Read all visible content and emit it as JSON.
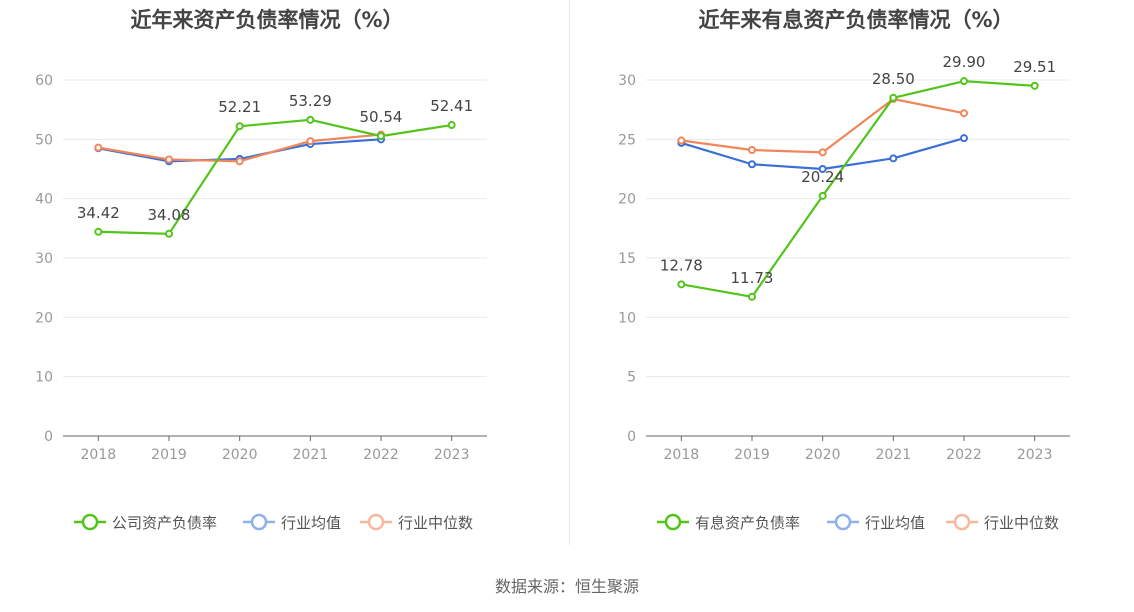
{
  "colors": {
    "company": "#52c41a",
    "industry_avg": "#3a6fd8",
    "industry_median": "#f0875a",
    "legend_avg": "#8fb0ee",
    "legend_median": "#f7b79c",
    "axis": "#666666",
    "grid": "#e6e9f0",
    "tick_text": "#999999",
    "title": "#444444"
  },
  "source_text": "数据来源：恒生聚源",
  "chart_data": [
    {
      "type": "line",
      "title": "近年来资产负债率情况（%）",
      "categories": [
        "2018",
        "2019",
        "2020",
        "2021",
        "2022",
        "2023"
      ],
      "ylim": [
        0,
        60
      ],
      "yticks": [
        0,
        10,
        20,
        30,
        40,
        50,
        60
      ],
      "grid": true,
      "legend_position": "bottom",
      "series": [
        {
          "name": "公司资产负债率",
          "key": "company",
          "values": [
            34.42,
            34.08,
            52.21,
            53.29,
            50.54,
            52.41
          ],
          "labels": [
            "34.42",
            "34.08",
            "52.21",
            "53.29",
            "50.54",
            "52.41"
          ]
        },
        {
          "name": "行业均值",
          "key": "industry_avg",
          "values": [
            48.5,
            46.3,
            46.7,
            49.2,
            50.0,
            null
          ]
        },
        {
          "name": "行业中位数",
          "key": "industry_median",
          "values": [
            48.6,
            46.6,
            46.3,
            49.7,
            50.8,
            null
          ]
        }
      ]
    },
    {
      "type": "line",
      "title": "近年来有息资产负债率情况（%）",
      "categories": [
        "2018",
        "2019",
        "2020",
        "2021",
        "2022",
        "2023"
      ],
      "ylim": [
        0,
        30
      ],
      "yticks": [
        0,
        5,
        10,
        15,
        20,
        25,
        30
      ],
      "grid": true,
      "legend_position": "bottom",
      "series": [
        {
          "name": "有息资产负债率",
          "key": "company",
          "values": [
            12.78,
            11.73,
            20.24,
            28.5,
            29.9,
            29.51
          ],
          "labels": [
            "12.78",
            "11.73",
            "20.24",
            "28.50",
            "29.90",
            "29.51"
          ]
        },
        {
          "name": "行业均值",
          "key": "industry_avg",
          "values": [
            24.7,
            22.9,
            22.5,
            23.4,
            25.1,
            null
          ]
        },
        {
          "name": "行业中位数",
          "key": "industry_median",
          "values": [
            24.9,
            24.1,
            23.9,
            28.4,
            27.2,
            null
          ]
        }
      ]
    }
  ]
}
